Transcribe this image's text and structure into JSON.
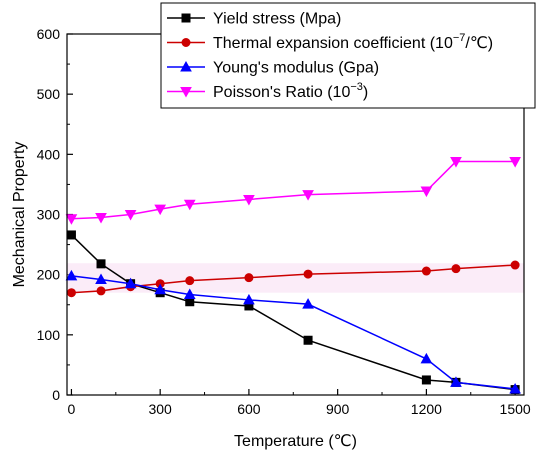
{
  "chart_data": {
    "type": "line",
    "title": "",
    "xlabel": "Temperature (℃)",
    "ylabel": "Mechanical Property",
    "xlim": [
      -15,
      1530
    ],
    "ylim": [
      0,
      600
    ],
    "xticks": [
      0,
      300,
      600,
      900,
      1200,
      1500
    ],
    "yticks": [
      0,
      100,
      200,
      300,
      400,
      500,
      600
    ],
    "grid": false,
    "legend_placement": "top-right",
    "series": [
      {
        "name": "Yield stress (Mpa)",
        "color": "#000000",
        "marker": "square",
        "x": [
          0,
          100,
          200,
          300,
          400,
          600,
          800,
          1200,
          1300,
          1500
        ],
        "y": [
          266,
          218,
          185,
          170,
          155,
          148,
          91,
          25,
          21,
          9
        ]
      },
      {
        "name_parts": [
          "Thermal expansion coefficient (10",
          "−7",
          "/℃)"
        ],
        "color": "#cc0000",
        "marker": "circle",
        "x": [
          0,
          100,
          200,
          300,
          400,
          600,
          800,
          1200,
          1300,
          1500
        ],
        "y": [
          170,
          173,
          180,
          185,
          190,
          195,
          201,
          206,
          210,
          216
        ]
      },
      {
        "name": "Young's modulus (Gpa)",
        "color": "#0000ff",
        "marker": "triangle-up",
        "x": [
          0,
          100,
          200,
          300,
          400,
          600,
          800,
          1200,
          1300,
          1500
        ],
        "y": [
          198,
          192,
          185,
          175,
          167,
          158,
          151,
          60,
          21,
          10
        ]
      },
      {
        "name_parts": [
          "Poisson's Ratio (10",
          "−3",
          ")"
        ],
        "color": "#ff00ff",
        "marker": "triangle-down",
        "x": [
          0,
          100,
          200,
          300,
          400,
          600,
          800,
          1200,
          1300,
          1500
        ],
        "y": [
          293,
          295,
          300,
          309,
          317,
          325,
          333,
          339,
          388,
          388
        ]
      }
    ]
  }
}
